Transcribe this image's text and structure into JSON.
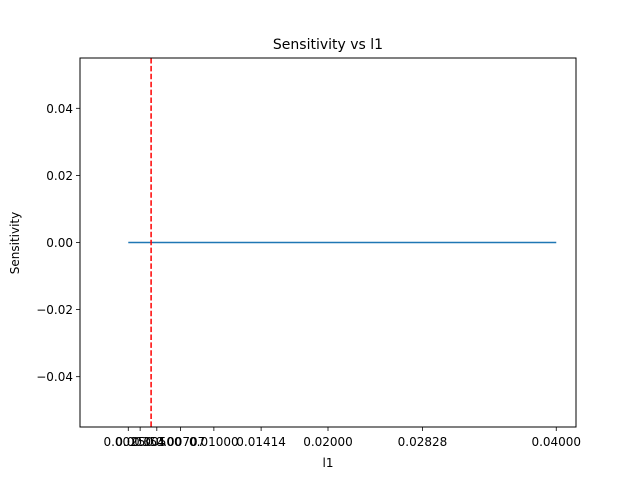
{
  "chart_data": {
    "type": "line",
    "title": "Sensitivity vs l1",
    "xlabel": "l1",
    "ylabel": "Sensitivity",
    "xlim": [
      -0.00173,
      0.04173
    ],
    "ylim": [
      -0.055,
      0.055
    ],
    "xticks": [
      0.0025,
      0.00354,
      0.005,
      0.00707,
      0.01,
      0.01414,
      0.02,
      0.02828,
      0.04
    ],
    "xtick_labels": [
      "0.00250",
      "0.00354",
      "0.00500",
      "0.00707",
      "0.01000",
      "0.01414",
      "0.02000",
      "0.02828",
      "0.04000"
    ],
    "yticks": [
      -0.04,
      -0.02,
      0.0,
      0.02,
      0.04
    ],
    "ytick_labels": [
      "−0.04",
      "−0.02",
      "0.00",
      "0.02",
      "0.04"
    ],
    "series": [
      {
        "color": "#1f77b4",
        "x": [
          0.0025,
          0.04
        ],
        "y": [
          0.0,
          0.0
        ]
      }
    ],
    "vline": {
      "x": 0.0045,
      "color": "#ff0000",
      "style": "dashed"
    },
    "grid": false,
    "legend": "none"
  }
}
